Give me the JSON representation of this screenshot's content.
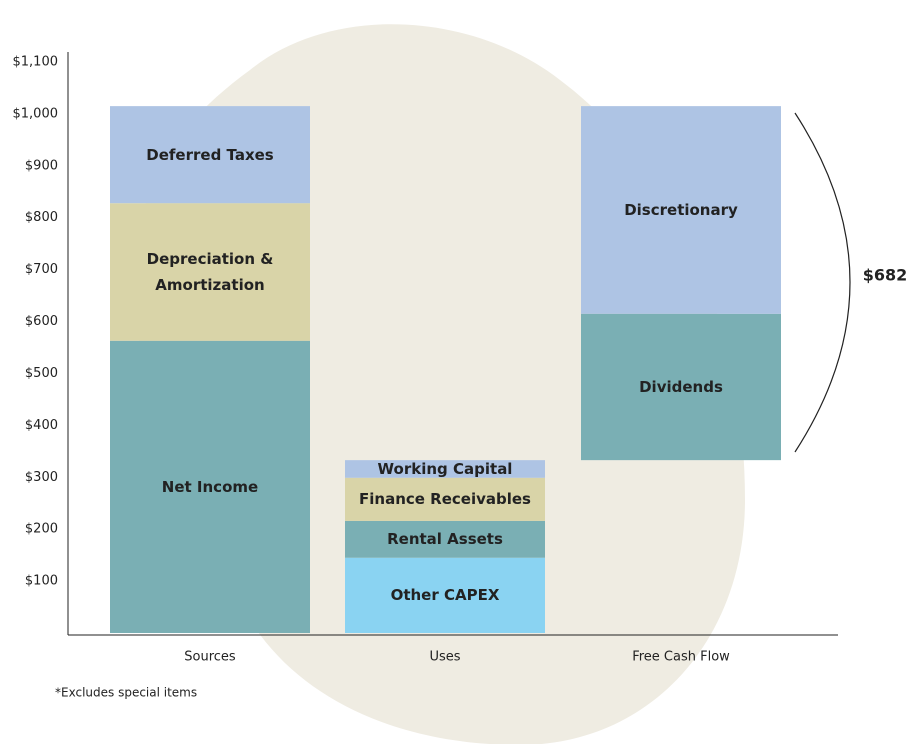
{
  "chart_data": {
    "type": "stacked_bar",
    "categories": [
      "Sources",
      "Uses",
      "Free Cash Flow"
    ],
    "bars": [
      {
        "segments": [
          {
            "name": "Net Income",
            "value": 563,
            "color": "#7aafb4"
          },
          {
            "name": "Depreciation &\nAmortization",
            "value": 265,
            "color": "#d9d4a8"
          },
          {
            "name": "Deferred Taxes",
            "value": 187,
            "color": "#aec4e4"
          }
        ]
      },
      {
        "segments": [
          {
            "name": "Other CAPEX",
            "value": 145,
            "color": "#8ad3f2"
          },
          {
            "name": "Rental Assets",
            "value": 71,
            "color": "#7aafb4"
          },
          {
            "name": "Finance Receivables",
            "value": 83,
            "color": "#d9d4a8"
          },
          {
            "name": "Working Capital",
            "value": 34,
            "color": "#aec4e4"
          }
        ]
      },
      {
        "floating": true,
        "segments": [
          {
            "name": "Dividends",
            "value": 282,
            "color": "#7aafb4"
          },
          {
            "name": "Discretionary",
            "value": 400,
            "color": "#aec4e4"
          }
        ]
      }
    ],
    "ylim": [
      0,
      1100
    ],
    "yticks": [
      {
        "value": 100,
        "label": "$100"
      },
      {
        "value": 200,
        "label": "$200"
      },
      {
        "value": 300,
        "label": "$300"
      },
      {
        "value": 400,
        "label": "$400"
      },
      {
        "value": 500,
        "label": "$500"
      },
      {
        "value": 600,
        "label": "$600"
      },
      {
        "value": 700,
        "label": "$700"
      },
      {
        "value": 800,
        "label": "$800"
      },
      {
        "value": 900,
        "label": "$900"
      },
      {
        "value": 1000,
        "label": "$1,000"
      },
      {
        "value": 1100,
        "label": "$1,100"
      }
    ],
    "annotation": "$682",
    "footnote": "*Excludes special items"
  }
}
